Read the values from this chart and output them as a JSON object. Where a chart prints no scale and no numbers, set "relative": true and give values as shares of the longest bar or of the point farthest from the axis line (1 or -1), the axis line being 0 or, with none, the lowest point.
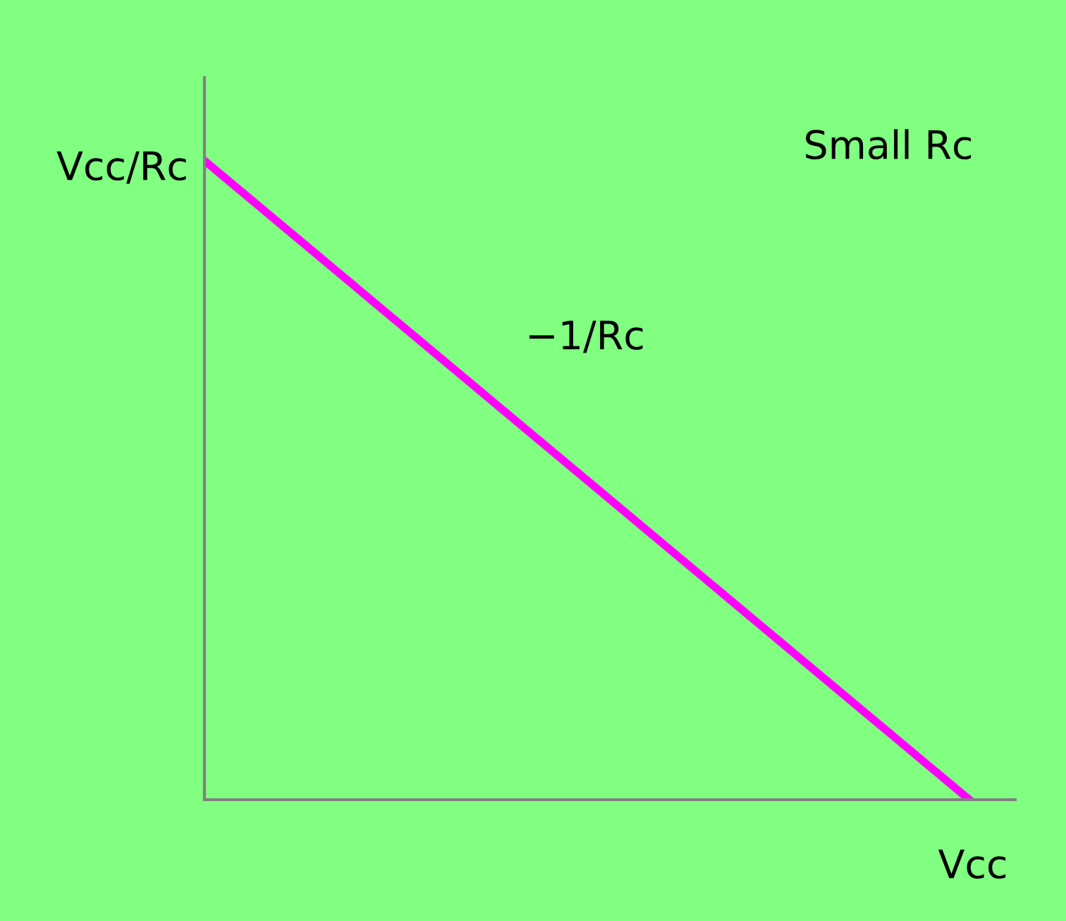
{
  "chart_data": {
    "type": "line",
    "relative": true,
    "categories": [
      null,
      null
    ],
    "series": [
      {
        "color": "#ff00ff",
        "values": [
          1,
          0
        ]
      }
    ],
    "xlabel": "Vcc",
    "ylabel": "Vcc/Rc",
    "annotations": [
      "Small Rc",
      "−1/Rc"
    ],
    "marker": "none",
    "line_style": "solid"
  }
}
